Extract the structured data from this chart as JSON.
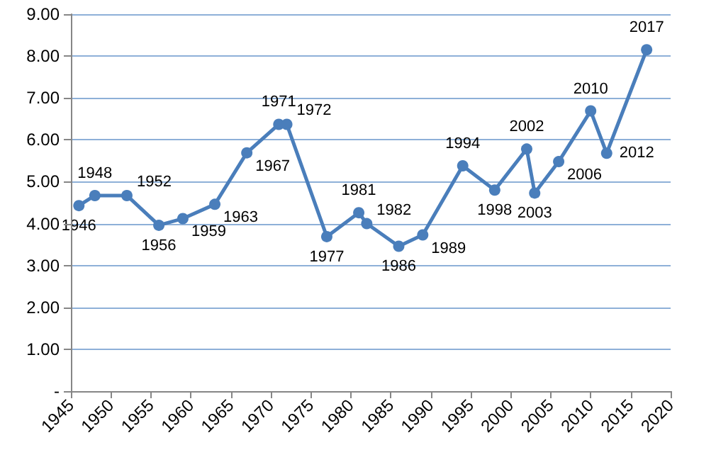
{
  "chart_data": {
    "type": "line",
    "x": [
      1946,
      1948,
      1952,
      1956,
      1959,
      1963,
      1967,
      1971,
      1972,
      1977,
      1981,
      1982,
      1986,
      1989,
      1994,
      1998,
      2002,
      2003,
      2006,
      2010,
      2012,
      2017
    ],
    "series": [
      {
        "color": "#4a7ebb",
        "values": [
          4.43,
          4.67,
          4.67,
          3.96,
          4.12,
          4.46,
          5.69,
          6.37,
          6.37,
          3.69,
          4.26,
          4.0,
          3.46,
          3.73,
          5.38,
          4.8,
          5.78,
          4.73,
          5.48,
          6.69,
          5.68,
          8.15
        ]
      }
    ],
    "annotations": [
      {
        "text": "1946",
        "x": 1946,
        "y": 4.43
      },
      {
        "text": "1948",
        "x": 1948,
        "y": 4.67
      },
      {
        "text": "1952",
        "x": 1952,
        "y": 4.67
      },
      {
        "text": "1956",
        "x": 1956,
        "y": 3.96
      },
      {
        "text": "1959",
        "x": 1959,
        "y": 4.12
      },
      {
        "text": "1963",
        "x": 1963,
        "y": 4.46
      },
      {
        "text": "1967",
        "x": 1967,
        "y": 5.69
      },
      {
        "text": "1971",
        "x": 1971,
        "y": 6.37
      },
      {
        "text": "1972",
        "x": 1972,
        "y": 6.37
      },
      {
        "text": "1977",
        "x": 1977,
        "y": 3.69
      },
      {
        "text": "1981",
        "x": 1981,
        "y": 4.26
      },
      {
        "text": "1982",
        "x": 1982,
        "y": 4.0
      },
      {
        "text": "1986",
        "x": 1986,
        "y": 3.46
      },
      {
        "text": "1989",
        "x": 1989,
        "y": 3.73
      },
      {
        "text": "1994",
        "x": 1994,
        "y": 5.38
      },
      {
        "text": "1998",
        "x": 1998,
        "y": 4.8
      },
      {
        "text": "2002",
        "x": 2002,
        "y": 5.78
      },
      {
        "text": "2003",
        "x": 2003,
        "y": 4.73
      },
      {
        "text": "2006",
        "x": 2006,
        "y": 5.48
      },
      {
        "text": "2010",
        "x": 2010,
        "y": 6.69
      },
      {
        "text": "2012",
        "x": 2012,
        "y": 5.68
      },
      {
        "text": "2017",
        "x": 2017,
        "y": 8.15
      }
    ],
    "xlim": [
      1945,
      2020
    ],
    "xticks": [
      1945,
      1950,
      1955,
      1960,
      1965,
      1970,
      1975,
      1980,
      1985,
      1990,
      1995,
      2000,
      2005,
      2010,
      2015,
      2020
    ],
    "ylim": [
      0,
      9
    ],
    "yticks": [
      {
        "value": 0,
        "label": "-"
      },
      {
        "value": 1,
        "label": "1.00"
      },
      {
        "value": 2,
        "label": "2.00"
      },
      {
        "value": 3,
        "label": "3.00"
      },
      {
        "value": 4,
        "label": "4.00"
      },
      {
        "value": 5,
        "label": "5.00"
      },
      {
        "value": 6,
        "label": "6.00"
      },
      {
        "value": 7,
        "label": "7.00"
      },
      {
        "value": 8,
        "label": "8.00"
      },
      {
        "value": 9,
        "label": "9.00"
      }
    ],
    "grid": "y",
    "marker": "circle",
    "line_style": "solid"
  }
}
